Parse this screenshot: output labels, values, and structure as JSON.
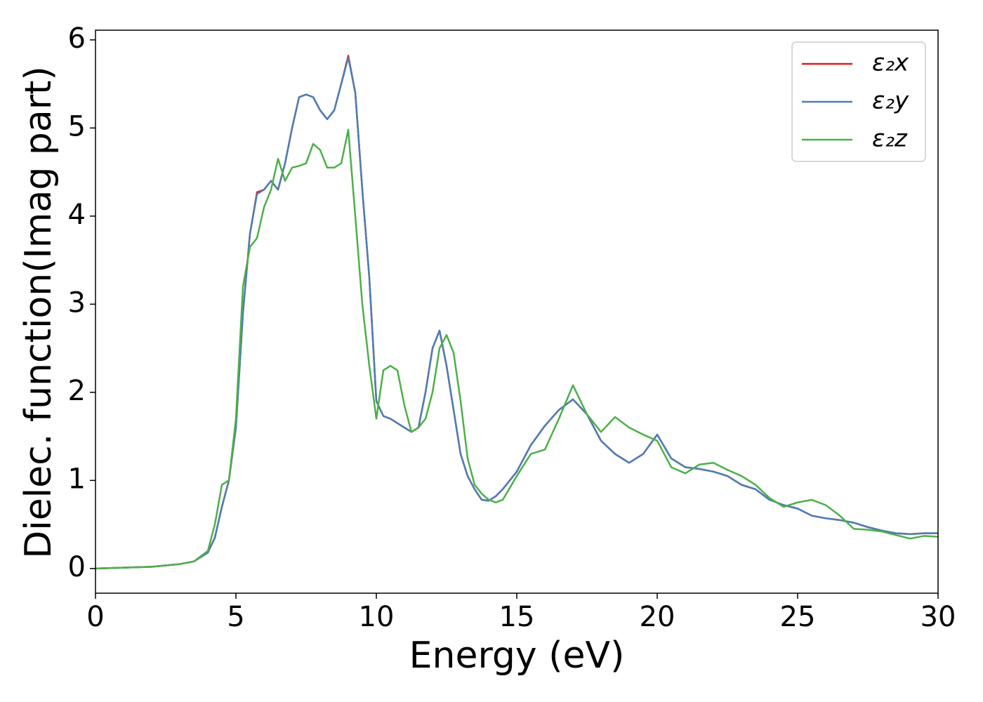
{
  "chart_data": {
    "type": "line",
    "xlabel": "Energy (eV)",
    "ylabel": "Dielec. function(Imag part)",
    "x": [
      0,
      1,
      2,
      3,
      3.5,
      4,
      4.25,
      4.5,
      4.75,
      5,
      5.25,
      5.5,
      5.75,
      6,
      6.25,
      6.5,
      6.75,
      7,
      7.25,
      7.5,
      7.75,
      8,
      8.25,
      8.5,
      8.75,
      9,
      9.25,
      9.5,
      9.75,
      10,
      10.25,
      10.5,
      10.75,
      11,
      11.25,
      11.5,
      11.75,
      12,
      12.25,
      12.5,
      12.75,
      13,
      13.25,
      13.5,
      13.75,
      14,
      14.25,
      14.5,
      15,
      15.5,
      16,
      16.5,
      17,
      17.5,
      18,
      18.5,
      19,
      19.5,
      20,
      20.5,
      21,
      21.5,
      22,
      22.5,
      23,
      23.5,
      24,
      24.5,
      25,
      25.5,
      26,
      26.5,
      27,
      27.5,
      28,
      28.5,
      29,
      29.5,
      30
    ],
    "series": [
      {
        "name": "ε₂x",
        "color": "#e41a1c",
        "values": [
          0,
          0.01,
          0.02,
          0.05,
          0.08,
          0.18,
          0.35,
          0.7,
          1.0,
          1.6,
          2.9,
          3.8,
          4.27,
          4.3,
          4.4,
          4.3,
          4.6,
          5.0,
          5.35,
          5.38,
          5.35,
          5.2,
          5.1,
          5.2,
          5.5,
          5.82,
          5.4,
          4.3,
          3.3,
          1.9,
          1.73,
          1.7,
          1.65,
          1.6,
          1.55,
          1.6,
          2.0,
          2.5,
          2.7,
          2.3,
          1.8,
          1.3,
          1.05,
          0.9,
          0.78,
          0.77,
          0.82,
          0.9,
          1.1,
          1.4,
          1.62,
          1.8,
          1.92,
          1.75,
          1.45,
          1.3,
          1.2,
          1.3,
          1.52,
          1.25,
          1.15,
          1.13,
          1.1,
          1.05,
          0.95,
          0.9,
          0.78,
          0.72,
          0.68,
          0.6,
          0.57,
          0.55,
          0.52,
          0.47,
          0.43,
          0.4,
          0.39,
          0.4,
          0.4
        ]
      },
      {
        "name": "ε₂y",
        "color": "#4a7fb5",
        "values": [
          0,
          0.01,
          0.02,
          0.05,
          0.08,
          0.18,
          0.35,
          0.7,
          1.0,
          1.6,
          2.9,
          3.8,
          4.25,
          4.3,
          4.4,
          4.3,
          4.6,
          5.0,
          5.35,
          5.38,
          5.35,
          5.2,
          5.1,
          5.2,
          5.5,
          5.8,
          5.4,
          4.3,
          3.3,
          1.9,
          1.73,
          1.7,
          1.65,
          1.6,
          1.55,
          1.6,
          2.0,
          2.5,
          2.7,
          2.3,
          1.8,
          1.3,
          1.05,
          0.9,
          0.78,
          0.77,
          0.82,
          0.9,
          1.1,
          1.4,
          1.62,
          1.8,
          1.92,
          1.75,
          1.45,
          1.3,
          1.2,
          1.3,
          1.52,
          1.25,
          1.15,
          1.13,
          1.1,
          1.05,
          0.95,
          0.9,
          0.78,
          0.72,
          0.68,
          0.6,
          0.57,
          0.55,
          0.52,
          0.47,
          0.43,
          0.4,
          0.39,
          0.4,
          0.4
        ]
      },
      {
        "name": "ε₂z",
        "color": "#4daf4a",
        "values": [
          0,
          0.01,
          0.02,
          0.05,
          0.08,
          0.2,
          0.5,
          0.95,
          1.0,
          1.7,
          3.2,
          3.65,
          3.75,
          4.1,
          4.3,
          4.65,
          4.4,
          4.55,
          4.57,
          4.6,
          4.82,
          4.75,
          4.55,
          4.55,
          4.6,
          4.98,
          4.0,
          3.0,
          2.3,
          1.7,
          2.25,
          2.3,
          2.25,
          1.85,
          1.55,
          1.6,
          1.7,
          2.0,
          2.5,
          2.65,
          2.45,
          1.9,
          1.25,
          0.95,
          0.85,
          0.78,
          0.75,
          0.78,
          1.05,
          1.3,
          1.35,
          1.7,
          2.08,
          1.75,
          1.55,
          1.72,
          1.6,
          1.52,
          1.45,
          1.15,
          1.08,
          1.18,
          1.2,
          1.12,
          1.05,
          0.95,
          0.8,
          0.7,
          0.75,
          0.78,
          0.72,
          0.6,
          0.45,
          0.44,
          0.42,
          0.38,
          0.34,
          0.37,
          0.36
        ]
      }
    ],
    "xlim": [
      0,
      30
    ],
    "xticks": [
      0,
      5,
      10,
      15,
      20,
      25,
      30
    ],
    "ylim": [
      -0.28,
      6.11
    ],
    "yticks": [
      0,
      1,
      2,
      3,
      4,
      5,
      6
    ],
    "grid": false,
    "legend": "upper right"
  }
}
